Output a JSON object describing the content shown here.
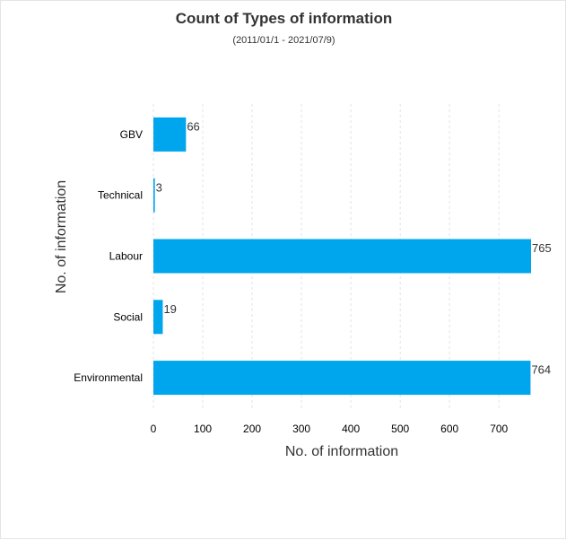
{
  "chart_data": {
    "type": "bar",
    "orientation": "horizontal",
    "title": "Count of Types of information",
    "subtitle": "(2011/01/1 - 2021/07/9)",
    "xlabel": "No. of information",
    "ylabel": "No. of information",
    "categories": [
      "GBV",
      "Technical",
      "Labour",
      "Social",
      "Environmental"
    ],
    "values": [
      66,
      3,
      765,
      19,
      764
    ],
    "value_labels": [
      "66",
      "3",
      "765",
      "19",
      "764"
    ],
    "x_ticks": [
      "0",
      "100",
      "200",
      "300",
      "400",
      "500",
      "600",
      "700"
    ],
    "x_tick_values": [
      0,
      100,
      200,
      300,
      400,
      500,
      600,
      700
    ],
    "xlim": [
      0,
      765
    ],
    "grid": "vertical dashed",
    "bar_color": "#00a6ed"
  }
}
